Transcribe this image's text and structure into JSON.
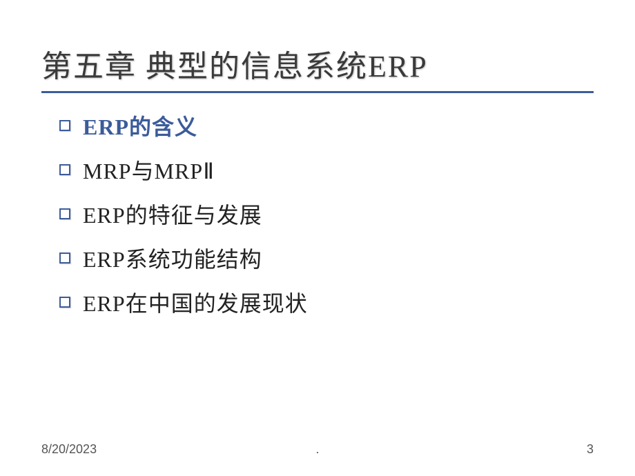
{
  "title": "第五章  典型的信息系统ERP",
  "title_color": "#3a3a3a",
  "rule_color": "#3b5b9a",
  "bullet_border_color": "#3b5b9a",
  "active_color": "#3b5b9a",
  "text_color": "#222222",
  "background_color": "#ffffff",
  "title_fontsize": 44,
  "bullet_fontsize": 32,
  "footer_fontsize": 18,
  "bullets": [
    {
      "text": "ERP的含义",
      "active": true
    },
    {
      "text": "MRP与MRPⅡ",
      "active": false
    },
    {
      "text": "ERP的特征与发展",
      "active": false
    },
    {
      "text": "ERP系统功能结构",
      "active": false
    },
    {
      "text": "ERP在中国的发展现状",
      "active": false
    }
  ],
  "footer": {
    "date": "8/20/2023",
    "center": ".",
    "page": "3"
  }
}
